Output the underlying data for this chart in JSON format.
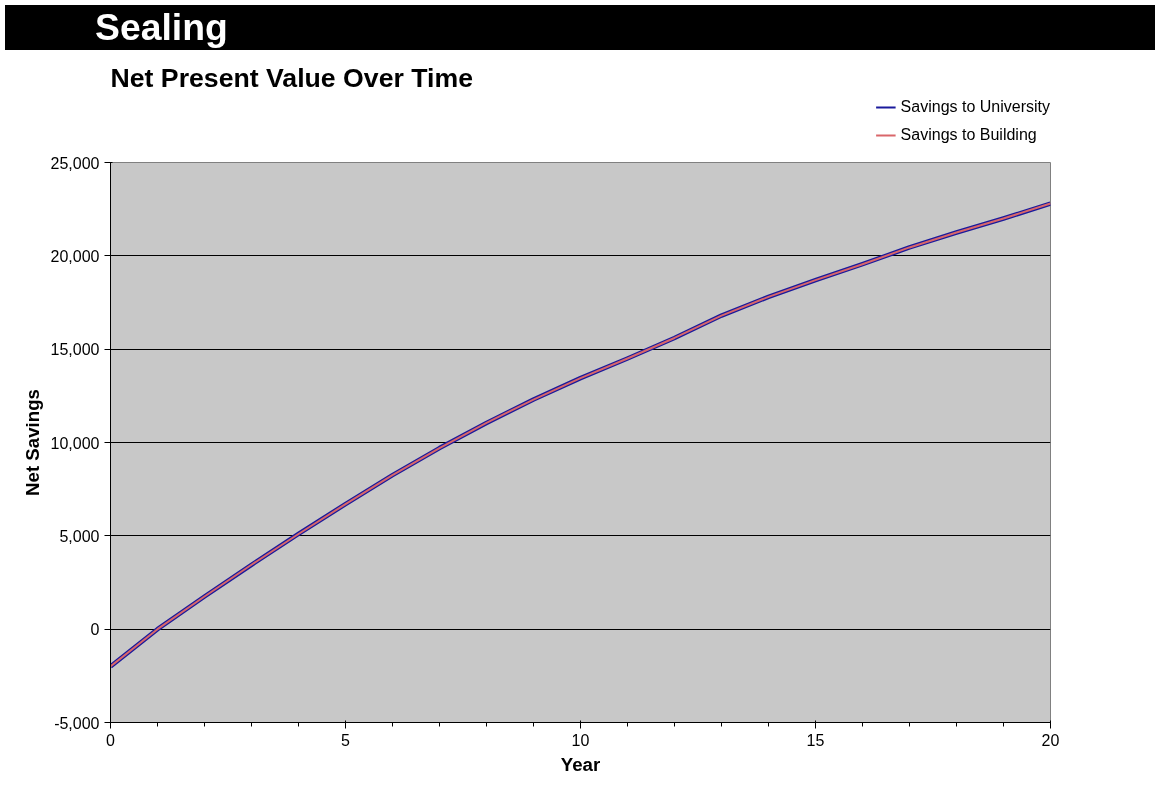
{
  "chart_data": {
    "type": "line",
    "title": "Sealing",
    "subtitle": "Net Present Value Over Time",
    "xlabel": "Year",
    "ylabel": "Net Savings",
    "x": [
      0,
      1,
      2,
      3,
      4,
      5,
      6,
      7,
      8,
      9,
      10,
      11,
      12,
      13,
      14,
      15,
      16,
      17,
      18,
      19,
      20
    ],
    "series": [
      {
        "name": "Savings to University",
        "color": "#1a1a9c",
        "values": [
          -2000,
          0,
          1750,
          3450,
          5100,
          6700,
          8250,
          9700,
          11050,
          12300,
          13450,
          14500,
          15600,
          16800,
          17800,
          18700,
          19550,
          20450,
          21250,
          22000,
          22800
        ]
      },
      {
        "name": "Savings to Building",
        "color": "#d9666a",
        "values": [
          -2000,
          0,
          1750,
          3450,
          5100,
          6700,
          8250,
          9700,
          11050,
          12300,
          13450,
          14500,
          15600,
          16800,
          17800,
          18700,
          19550,
          20450,
          21250,
          22000,
          22800
        ]
      }
    ],
    "xlim": [
      0,
      20
    ],
    "xticks": [
      0,
      5,
      10,
      15,
      20
    ],
    "ylim": [
      -5000,
      25000
    ],
    "yticks": [
      {
        "value": -5000,
        "label": "-5,000"
      },
      0,
      {
        "value": 5000,
        "label": "5,000"
      },
      {
        "value": 10000,
        "label": "10,000"
      },
      {
        "value": 15000,
        "label": "15,000"
      },
      {
        "value": 20000,
        "label": "20,000"
      },
      {
        "value": 25000,
        "label": "25,000"
      }
    ],
    "grid": "y",
    "legend": "top right",
    "marker": "none",
    "line_style": "solid"
  }
}
